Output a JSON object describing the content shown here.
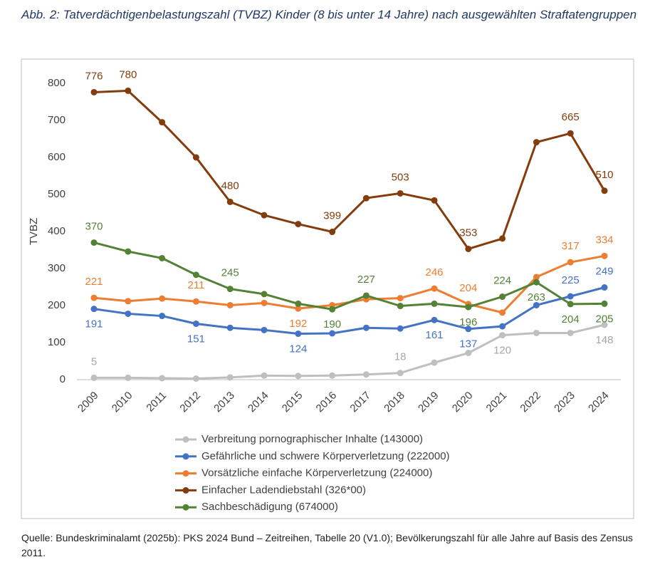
{
  "chart_data": {
    "type": "line",
    "title": "Abb. 2: Tatverdächtigenbelastungszahl (TVBZ) Kinder (8 bis unter 14 Jahre) nach ausgewählten Straftatengruppen",
    "ylabel": "TVBZ",
    "source": "Quelle: Bundeskriminalamt (2025b): PKS 2024 Bund – Zeitreihen, Tabelle 20 (V1.0); Bevölkerungszahl für alle Jahre auf Basis des Zensus 2011.",
    "categories": [
      "2009",
      "2010",
      "2011",
      "2012",
      "2013",
      "2014",
      "2015",
      "2016",
      "2017",
      "2018",
      "2019",
      "2020",
      "2021",
      "2022",
      "2023",
      "2024"
    ],
    "ylim": [
      0,
      800
    ],
    "yticks": [
      0,
      100,
      200,
      300,
      400,
      500,
      600,
      700,
      800
    ],
    "grid": false,
    "series": [
      {
        "name": "Verbreitung pornographischer Inhalte (143000)",
        "color": "#bfbfbf",
        "values": [
          5,
          5,
          4,
          3,
          6,
          11,
          10,
          11,
          14,
          18,
          46,
          72,
          120,
          126,
          126,
          148
        ],
        "value_labels": [
          "5",
          null,
          null,
          null,
          null,
          null,
          null,
          null,
          null,
          "18",
          null,
          null,
          "120",
          null,
          null,
          "148"
        ]
      },
      {
        "name": "Gefährliche und schwere Körperverletzung (222000)",
        "color": "#4472c4",
        "values": [
          191,
          178,
          172,
          151,
          140,
          134,
          124,
          125,
          140,
          138,
          161,
          137,
          144,
          201,
          225,
          249
        ],
        "value_labels": [
          "191",
          null,
          null,
          "151",
          null,
          null,
          "124",
          null,
          null,
          null,
          "161",
          "137",
          null,
          null,
          "225",
          "249"
        ]
      },
      {
        "name": "Vorsätzliche einfache Körperverletzung (224000)",
        "color": "#ed7d31",
        "values": [
          221,
          212,
          219,
          211,
          201,
          207,
          192,
          201,
          217,
          220,
          246,
          204,
          181,
          277,
          317,
          334
        ],
        "value_labels": [
          "221",
          null,
          null,
          "211",
          null,
          null,
          "192",
          null,
          null,
          null,
          "246",
          "204",
          null,
          null,
          "317",
          "334"
        ]
      },
      {
        "name": "Einfacher Ladendiebstahl (326*00)",
        "color": "#843c0c",
        "values": [
          776,
          780,
          695,
          600,
          480,
          444,
          420,
          399,
          490,
          503,
          484,
          353,
          381,
          641,
          665,
          510
        ],
        "value_labels": [
          "776",
          "780",
          null,
          null,
          "480",
          null,
          null,
          "399",
          null,
          "503",
          null,
          "353",
          null,
          null,
          "665",
          "510"
        ]
      },
      {
        "name": "Sachbeschädigung (674000)",
        "color": "#548235",
        "values": [
          370,
          346,
          328,
          283,
          245,
          231,
          205,
          190,
          227,
          199,
          205,
          196,
          224,
          263,
          204,
          205
        ],
        "value_labels": [
          "370",
          null,
          null,
          null,
          "245",
          null,
          null,
          "190",
          "227",
          null,
          null,
          "196",
          "224",
          "263",
          "204",
          "205"
        ]
      }
    ]
  }
}
